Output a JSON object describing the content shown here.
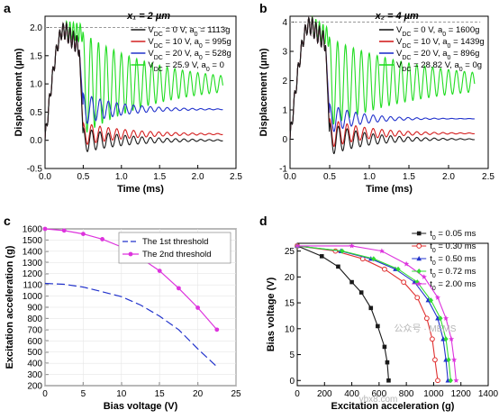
{
  "panels": [
    {
      "id": "a",
      "label": "a",
      "annotation": "x₁ = 2 µm",
      "xlabel": "Time (ms)",
      "ylabel": "Displacement (µm)",
      "xlim": [
        0,
        2.5
      ],
      "ylim": [
        -0.5,
        2.2
      ],
      "xticks": [
        "0.0",
        "0.5",
        "1.0",
        "1.5",
        "2.0",
        "2.5"
      ],
      "yticks": [
        "-0.5",
        "0.0",
        "0.5",
        "1.0",
        "1.5",
        "2.0"
      ],
      "ref_line": 2.0,
      "series": [
        {
          "name": "V_DC = 0 V, a_0 = 1113g",
          "color": "#1a1a1a",
          "final": 0.0,
          "amp": 0.22,
          "tau": 0.6,
          "period": 0.11
        },
        {
          "name": "V_DC = 10 V, a_0 = 995g",
          "color": "#d42020",
          "final": 0.11,
          "amp": 0.2,
          "tau": 0.6,
          "period": 0.11
        },
        {
          "name": "V_DC = 20 V, a_0 = 528g",
          "color": "#2233cc",
          "final": 0.55,
          "amp": 0.28,
          "tau": 0.5,
          "period": 0.11
        },
        {
          "name": "V_DC = 25.9 V, a_0 = 0",
          "color": "#22dd22",
          "final": 1.0,
          "amp": 0.9,
          "tau": 1.0,
          "period": 0.1
        }
      ]
    },
    {
      "id": "b",
      "label": "b",
      "annotation": "x₂ = 4 µm",
      "xlabel": "Time (ms)",
      "ylabel": "Displacement (µm)",
      "xlim": [
        0,
        2.5
      ],
      "ylim": [
        -1,
        4.2
      ],
      "xticks": [
        "0.0",
        "0.5",
        "1.0",
        "1.5",
        "2.0",
        "2.5"
      ],
      "yticks": [
        "-1",
        "0",
        "1",
        "2",
        "3",
        "4"
      ],
      "ref_line": 4.0,
      "series": [
        {
          "name": "V_DC = 0 V, a_0 = 1600g",
          "color": "#1a1a1a",
          "final": 0.0,
          "amp": 0.55,
          "tau": 0.5,
          "period": 0.11
        },
        {
          "name": "V_DC = 10 V, a_0 = 1439g",
          "color": "#d42020",
          "final": 0.2,
          "amp": 0.5,
          "tau": 0.5,
          "period": 0.11
        },
        {
          "name": "V_DC = 20 V, a_0 = 896g",
          "color": "#2233cc",
          "final": 0.7,
          "amp": 0.5,
          "tau": 0.4,
          "period": 0.11
        },
        {
          "name": "V_DC = 28.82 V, a_0 = 0g",
          "color": "#22dd22",
          "final": 1.95,
          "amp": 1.5,
          "tau": 1.2,
          "period": 0.1
        }
      ]
    },
    {
      "id": "c",
      "label": "c",
      "xlabel": "Bias voltage (V)",
      "ylabel": "Excitation acceleration (g)",
      "xlim": [
        0,
        25
      ],
      "ylim": [
        200,
        1600
      ],
      "xticks": [
        "0",
        "5",
        "10",
        "15",
        "20",
        "25"
      ],
      "yticks": [
        "200",
        "300",
        "400",
        "500",
        "600",
        "700",
        "800",
        "900",
        "1000",
        "1100",
        "1200",
        "1300",
        "1400",
        "1500",
        "1600"
      ],
      "series": [
        {
          "name": "The 1st threshold",
          "color": "#2233cc",
          "dash": true,
          "x": [
            0,
            2.5,
            5,
            7.5,
            10,
            12.5,
            15,
            17.5,
            20,
            22.5
          ],
          "y": [
            1113,
            1105,
            1080,
            1038,
            995,
            920,
            820,
            700,
            528,
            370
          ]
        },
        {
          "name": "The 2nd threshold",
          "color": "#dd33dd",
          "marker": "circle",
          "x": [
            0,
            2.5,
            5,
            7.5,
            10,
            12.5,
            15,
            17.5,
            20,
            22.5
          ],
          "y": [
            1600,
            1585,
            1555,
            1508,
            1439,
            1340,
            1225,
            1070,
            896,
            700
          ]
        }
      ]
    },
    {
      "id": "d",
      "label": "d",
      "xlabel": "Excitation acceleration (g)",
      "ylabel": "Bias voltage (V)",
      "xlim": [
        0,
        1400
      ],
      "ylim": [
        -1,
        26.5
      ],
      "xticks": [
        "0",
        "200",
        "400",
        "600",
        "800",
        "1000",
        "1200",
        "1400"
      ],
      "yticks": [
        "0",
        "5",
        "10",
        "15",
        "20",
        "25"
      ],
      "series": [
        {
          "name": "t_0 = 0.05 ms",
          "color": "#1a1a1a",
          "marker": "square",
          "x": [
            0,
            180,
            300,
            400,
            470,
            540,
            590,
            640,
            660,
            670
          ],
          "y": [
            26,
            24,
            22,
            19,
            17,
            14,
            10.5,
            6.5,
            3.5,
            0
          ]
        },
        {
          "name": "t_0 = 0.30 ms",
          "color": "#e03030",
          "marker": "open-circle",
          "x": [
            0,
            280,
            480,
            640,
            780,
            880,
            950,
            990,
            1010,
            1030
          ],
          "y": [
            26,
            25,
            23.5,
            21.5,
            19,
            16,
            12,
            8,
            4,
            0
          ]
        },
        {
          "name": "t_0 = 0.50 ms",
          "color": "#2233cc",
          "marker": "triangle",
          "x": [
            0,
            320,
            540,
            720,
            860,
            960,
            1030,
            1070,
            1090,
            1105
          ],
          "y": [
            26,
            25,
            23.5,
            21.5,
            19,
            15.5,
            12,
            8,
            4,
            0
          ]
        },
        {
          "name": "t_0 = 0.72 ms",
          "color": "#33dd33",
          "marker": "diamond",
          "x": [
            0,
            330,
            560,
            740,
            880,
            980,
            1050,
            1090,
            1110,
            1125
          ],
          "y": [
            26,
            25,
            23.5,
            21.5,
            19,
            15.5,
            12,
            8,
            4,
            0
          ]
        },
        {
          "name": "t_0 = 2.00 ms",
          "color": "#dd33dd",
          "marker": "star",
          "x": [
            0,
            400,
            620,
            800,
            930,
            1030,
            1090,
            1130,
            1150,
            1165
          ],
          "y": [
            26,
            26,
            25,
            22.5,
            20,
            16,
            12,
            8,
            4,
            0
          ]
        }
      ]
    }
  ],
  "watermark": "公众号 · MEMS",
  "watermark2": "ybx8.com"
}
